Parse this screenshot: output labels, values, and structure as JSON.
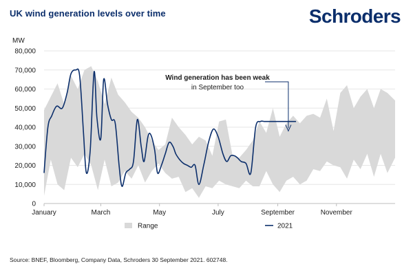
{
  "chart_data": {
    "type": "area",
    "title": "UK wind generation levels over time",
    "ylabel": "MW",
    "xlabel": "",
    "ylim": [
      0,
      80000
    ],
    "y_ticks": [
      0,
      10000,
      20000,
      30000,
      40000,
      50000,
      60000,
      70000,
      80000
    ],
    "y_tick_labels": [
      "0",
      "10,000",
      "20,000",
      "30,000",
      "40,000",
      "50,000",
      "60,000",
      "70,000",
      "80,000"
    ],
    "x_range": [
      0,
      365
    ],
    "x_ticks": [
      {
        "label": "January",
        "day": 0
      },
      {
        "label": "March",
        "day": 59
      },
      {
        "label": "May",
        "day": 120
      },
      {
        "label": "July",
        "day": 181
      },
      {
        "label": "September",
        "day": 243
      },
      {
        "label": "November",
        "day": 304
      }
    ],
    "range_band": {
      "name": "Range",
      "color": "#d9d9d9",
      "x": [
        0,
        7,
        14,
        21,
        28,
        35,
        42,
        49,
        56,
        63,
        70,
        77,
        84,
        91,
        98,
        105,
        112,
        119,
        126,
        133,
        140,
        147,
        154,
        161,
        168,
        175,
        182,
        189,
        196,
        203,
        210,
        217,
        224,
        231,
        238,
        245,
        252,
        259,
        266,
        273,
        280,
        287,
        294,
        301,
        308,
        315,
        322,
        329,
        336,
        343,
        350,
        357,
        365
      ],
      "upper": [
        49000,
        56000,
        63000,
        52000,
        67000,
        60000,
        70000,
        72000,
        64000,
        52000,
        66000,
        57000,
        53000,
        48000,
        45000,
        40000,
        33000,
        28000,
        31000,
        45000,
        40000,
        36000,
        31000,
        35000,
        33000,
        25000,
        43000,
        44000,
        25000,
        24000,
        28000,
        33000,
        43000,
        37000,
        50000,
        35000,
        42000,
        46000,
        42000,
        46000,
        47000,
        45000,
        55000,
        38000,
        58000,
        62000,
        50000,
        56000,
        60000,
        50000,
        60000,
        58000,
        54000
      ],
      "lower": [
        4000,
        23000,
        10000,
        7000,
        24000,
        19000,
        26000,
        20000,
        7000,
        23000,
        9000,
        11000,
        17000,
        13000,
        20000,
        11000,
        17000,
        21000,
        16000,
        13000,
        14000,
        6000,
        8000,
        3000,
        9000,
        8000,
        12000,
        10000,
        9000,
        8000,
        12000,
        9000,
        9000,
        17000,
        10000,
        6000,
        12000,
        14000,
        10000,
        12000,
        18000,
        17000,
        22000,
        20000,
        19000,
        13000,
        23000,
        18000,
        26000,
        14000,
        26000,
        16000,
        24000
      ]
    },
    "series": [
      {
        "name": "2021",
        "color": "#0b2e6b",
        "x": [
          0,
          4,
          8,
          13,
          19,
          24,
          28,
          33,
          37,
          41,
          44,
          48,
          52,
          55,
          59,
          62,
          66,
          70,
          74,
          78,
          81,
          85,
          89,
          93,
          97,
          101,
          104,
          108,
          111,
          115,
          118,
          122,
          126,
          130,
          134,
          137,
          141,
          145,
          149,
          153,
          157,
          161,
          166,
          171,
          176,
          181,
          186,
          190,
          194,
          198,
          201,
          205,
          210,
          215,
          220,
          225,
          229,
          233,
          237,
          241,
          246,
          250,
          254,
          258,
          262
        ],
        "values": [
          16000,
          40000,
          46000,
          51000,
          50000,
          58000,
          68000,
          70000,
          67000,
          37000,
          16000,
          28000,
          69000,
          45000,
          34000,
          65000,
          52000,
          44000,
          42000,
          20000,
          9000,
          16000,
          18000,
          22000,
          44000,
          30000,
          22000,
          35000,
          36000,
          28000,
          16000,
          20000,
          26000,
          32000,
          30000,
          26000,
          23000,
          21000,
          20000,
          19000,
          20000,
          10000,
          20000,
          32000,
          39000,
          35000,
          26000,
          22000,
          25000,
          25000,
          24000,
          22000,
          21000,
          16000,
          40000,
          43000,
          43000,
          43000,
          43000,
          43000,
          43000,
          43000,
          43000,
          43000,
          43000
        ]
      }
    ],
    "annotation": {
      "line1": "Wind generation has been weak",
      "line2": "in September too",
      "arrow_day": 254,
      "arrow_value": 38000
    },
    "legend": {
      "placement": "bottom",
      "items": [
        {
          "label": "Range",
          "kind": "band"
        },
        {
          "label": "2021",
          "kind": "line"
        }
      ]
    }
  },
  "header": {
    "title": "UK wind generation levels over time",
    "logo_text": "Schroders"
  },
  "footer": {
    "source": "Source: BNEF, Bloomberg, Company Data, Schroders 30 September 2021. 602748."
  }
}
